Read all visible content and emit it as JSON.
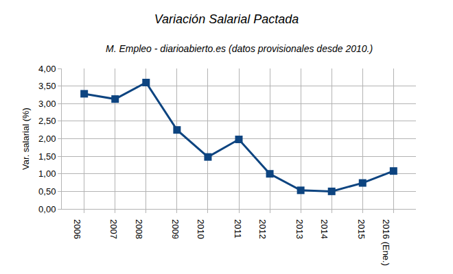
{
  "chart_data": {
    "type": "line",
    "title": "Variación Salarial Pactada",
    "subtitle": "M. Empleo - diarioabierto.es (datos provisionales desde 2010.)",
    "y_label": "Var. salarial (%)",
    "categories": [
      "2006",
      "2007",
      "2008",
      "2009",
      "2010",
      "2011",
      "2012",
      "2013",
      "2014",
      "2015",
      "2016 (Ene.)"
    ],
    "values": [
      3.28,
      3.13,
      3.6,
      2.25,
      1.48,
      1.98,
      1.0,
      0.53,
      0.5,
      0.74,
      1.08
    ],
    "color": "#0d4480",
    "marker": "square",
    "line_style": "solid",
    "ylim": [
      0,
      4
    ],
    "yticks": [
      {
        "value": 0,
        "label": "0,00"
      },
      {
        "value": 0.5,
        "label": "0,50"
      },
      {
        "value": 1,
        "label": "1,00"
      },
      {
        "value": 1.5,
        "label": "1,50"
      },
      {
        "value": 2,
        "label": "2,00"
      },
      {
        "value": 2.5,
        "label": "2,50"
      },
      {
        "value": 3,
        "label": "3,00"
      },
      {
        "value": 3.5,
        "label": "3,50"
      },
      {
        "value": 4,
        "label": "4,00"
      }
    ],
    "grid": true
  }
}
